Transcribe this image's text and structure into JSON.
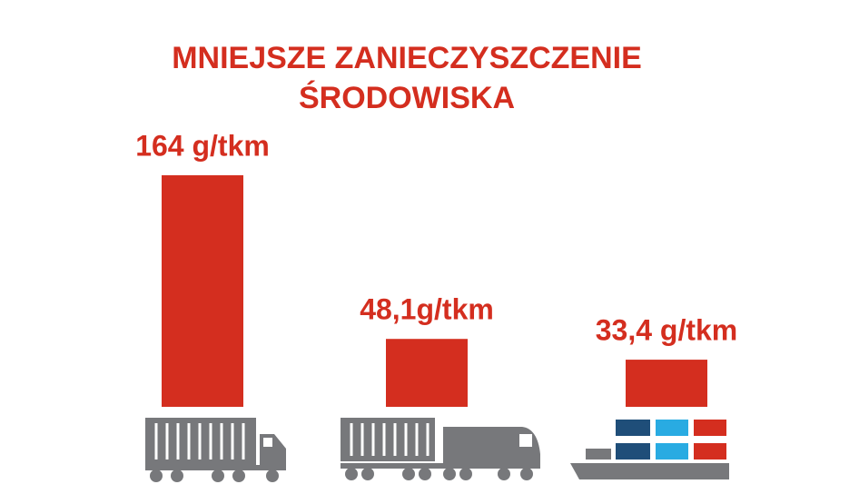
{
  "chart_data": {
    "type": "bar",
    "title": [
      "MNIEJSZE ZANIECZYSZCZENIE",
      "ŚRODOWISKA"
    ],
    "values": [
      164,
      48.1,
      33.4
    ],
    "value_labels": [
      "164 g/tkm",
      "48,1g/tkm",
      "33,4 g/tkm"
    ],
    "color": "#d42e1f"
  }
}
